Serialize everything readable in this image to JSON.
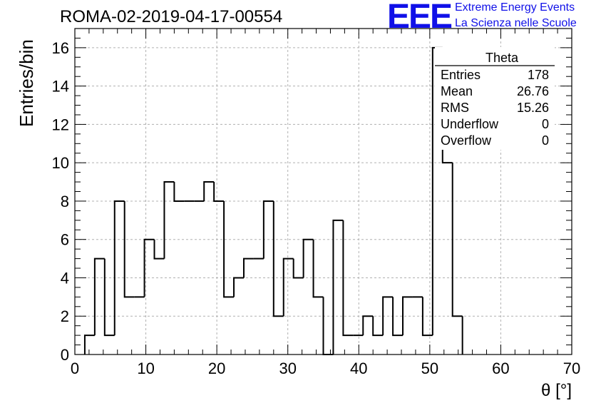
{
  "header": {
    "title": "ROMA-02-2019-04-17-00554",
    "logo_text": "EEE",
    "logo_line1": "Extreme Energy Events",
    "logo_line2": "La Scienza nelle Scuole"
  },
  "colors": {
    "logo": "#1010e8",
    "line": "#000000",
    "grid": "#b0b0b0"
  },
  "stats": {
    "title": "Theta",
    "rows": [
      {
        "label": "Entries",
        "value": "178"
      },
      {
        "label": "Mean",
        "value": "26.76"
      },
      {
        "label": "RMS",
        "value": "15.26"
      },
      {
        "label": "Underflow",
        "value": "0"
      },
      {
        "label": "Overflow",
        "value": "0"
      }
    ]
  },
  "chart_data": {
    "type": "histogram",
    "xlabel": "θ [°]",
    "ylabel": "Entries/bin",
    "xlim": [
      0,
      70
    ],
    "ylim": [
      0,
      17
    ],
    "xticks": [
      "0",
      "10",
      "20",
      "30",
      "40",
      "50",
      "60",
      "70"
    ],
    "yticks": [
      "0",
      "2",
      "4",
      "6",
      "8",
      "10",
      "12",
      "14",
      "16"
    ],
    "grid": true,
    "bin_width": 1.4,
    "bin_start": 1.4,
    "bin_start_values": [
      1.4,
      2.8,
      4.2,
      5.6,
      7.0,
      8.4,
      9.8,
      11.2,
      12.6,
      14.0,
      15.4,
      16.8,
      18.2,
      19.6,
      21.0,
      22.4,
      23.8,
      25.2,
      26.6,
      28.0,
      29.4,
      30.8,
      32.2,
      33.6,
      35.0,
      36.4,
      37.8,
      39.2,
      40.6,
      42.0,
      43.4,
      44.8,
      46.2,
      47.6,
      49.0,
      50.4,
      51.8,
      53.2
    ],
    "values": [
      1,
      5,
      1,
      8,
      3,
      3,
      6,
      5,
      9,
      8,
      8,
      8,
      9,
      8,
      3,
      4,
      5,
      5,
      8,
      2,
      5,
      4,
      6,
      3,
      0,
      7,
      1,
      1,
      2,
      1,
      3,
      1,
      3,
      3,
      1,
      16,
      10,
      2
    ]
  }
}
